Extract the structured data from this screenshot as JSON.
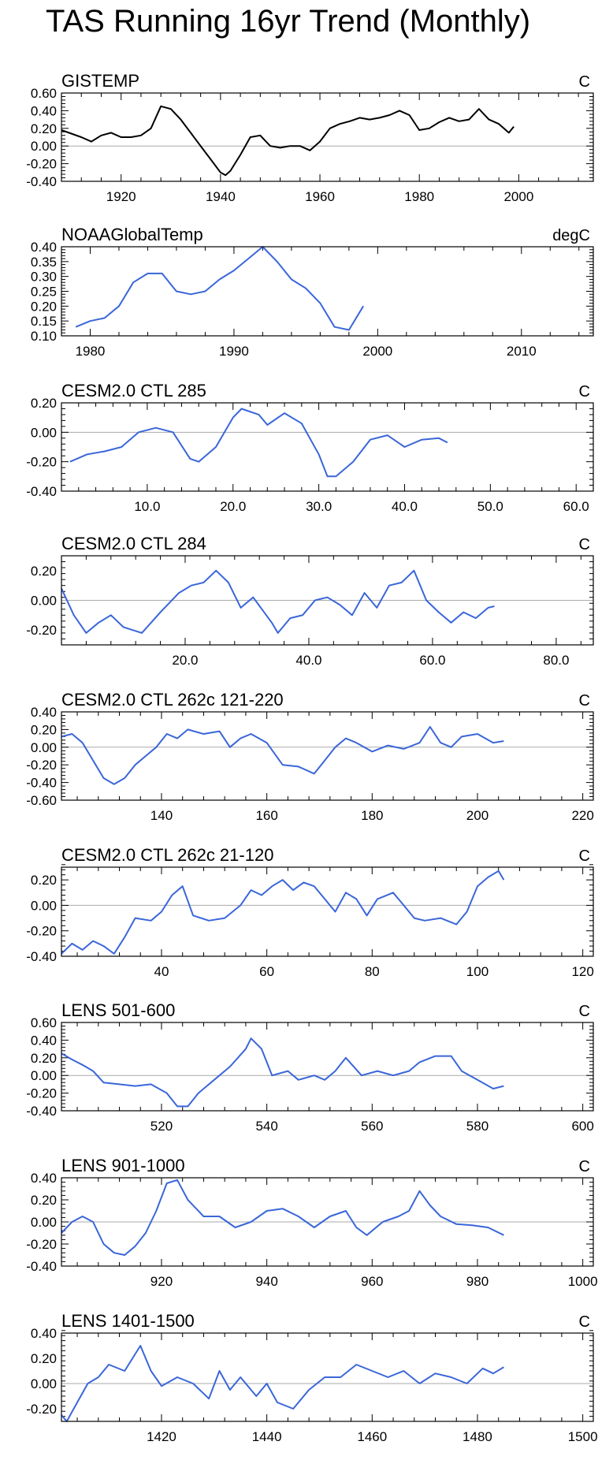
{
  "figure": {
    "title": "TAS Running 16yr Trend (Monthly)"
  },
  "chart_data": [
    {
      "type": "line",
      "title": "GISTEMP",
      "units": "C",
      "line_color": "#000000",
      "xlim": [
        1908,
        2015
      ],
      "ylim": [
        -0.4,
        0.6
      ],
      "xticks": [
        1920,
        1940,
        1960,
        1980,
        2000
      ],
      "xtick_labels": [
        "1920",
        "1940",
        "1960",
        "1980",
        "2000"
      ],
      "yticks": [
        -0.4,
        -0.2,
        0.0,
        0.2,
        0.4,
        0.6
      ],
      "ytick_labels": [
        "-0.40",
        "-0.20",
        "0.00",
        "0.20",
        "0.40",
        "0.60"
      ],
      "x": [
        1908,
        1910,
        1912,
        1914,
        1916,
        1918,
        1920,
        1922,
        1924,
        1926,
        1928,
        1930,
        1932,
        1934,
        1936,
        1938,
        1940,
        1941,
        1942,
        1944,
        1946,
        1948,
        1950,
        1952,
        1954,
        1956,
        1958,
        1960,
        1962,
        1964,
        1966,
        1968,
        1970,
        1972,
        1974,
        1976,
        1978,
        1980,
        1982,
        1984,
        1986,
        1988,
        1990,
        1992,
        1994,
        1996,
        1998,
        1999
      ],
      "y": [
        0.18,
        0.14,
        0.1,
        0.05,
        0.12,
        0.15,
        0.1,
        0.1,
        0.12,
        0.2,
        0.45,
        0.42,
        0.3,
        0.15,
        0.0,
        -0.15,
        -0.3,
        -0.33,
        -0.28,
        -0.1,
        0.1,
        0.12,
        0.0,
        -0.02,
        0.0,
        0.0,
        -0.05,
        0.05,
        0.2,
        0.25,
        0.28,
        0.32,
        0.3,
        0.32,
        0.35,
        0.4,
        0.35,
        0.18,
        0.2,
        0.27,
        0.32,
        0.28,
        0.3,
        0.42,
        0.3,
        0.25,
        0.15,
        0.22
      ]
    },
    {
      "type": "line",
      "title": "NOAAGlobalTemp",
      "units": "degC",
      "line_color": "#3a66d9",
      "xlim": [
        1978,
        2015
      ],
      "ylim": [
        0.1,
        0.4
      ],
      "xticks": [
        1980,
        1990,
        2000,
        2010
      ],
      "xtick_labels": [
        "1980",
        "1990",
        "2000",
        "2010"
      ],
      "yticks": [
        0.1,
        0.15,
        0.2,
        0.25,
        0.3,
        0.35,
        0.4
      ],
      "ytick_labels": [
        "0.10",
        "0.15",
        "0.20",
        "0.25",
        "0.30",
        "0.35",
        "0.40"
      ],
      "x": [
        1979,
        1980,
        1981,
        1982,
        1983,
        1984,
        1985,
        1986,
        1987,
        1988,
        1989,
        1990,
        1991,
        1992,
        1993,
        1994,
        1995,
        1996,
        1997,
        1998,
        1999
      ],
      "y": [
        0.13,
        0.15,
        0.16,
        0.2,
        0.28,
        0.31,
        0.31,
        0.25,
        0.24,
        0.25,
        0.29,
        0.32,
        0.36,
        0.4,
        0.35,
        0.29,
        0.26,
        0.21,
        0.13,
        0.12,
        0.2
      ]
    },
    {
      "type": "line",
      "title": "CESM2.0 CTL 285",
      "units": "C",
      "line_color": "#3a66d9",
      "xlim": [
        0,
        62
      ],
      "ylim": [
        -0.4,
        0.2
      ],
      "xticks": [
        10,
        20,
        30,
        40,
        50,
        60
      ],
      "xtick_labels": [
        "10.0",
        "20.0",
        "30.0",
        "40.0",
        "50.0",
        "60.0"
      ],
      "yticks": [
        -0.4,
        -0.2,
        0.0,
        0.2
      ],
      "ytick_labels": [
        "-0.40",
        "-0.20",
        "0.00",
        "0.20"
      ],
      "x": [
        1,
        3,
        5,
        7,
        9,
        11,
        13,
        15,
        16,
        18,
        20,
        21,
        23,
        24,
        26,
        28,
        30,
        31,
        32,
        34,
        36,
        38,
        40,
        42,
        44,
        45
      ],
      "y": [
        -0.2,
        -0.15,
        -0.13,
        -0.1,
        0.0,
        0.03,
        0.0,
        -0.18,
        -0.2,
        -0.1,
        0.1,
        0.16,
        0.12,
        0.05,
        0.13,
        0.06,
        -0.15,
        -0.3,
        -0.3,
        -0.2,
        -0.05,
        -0.02,
        -0.1,
        -0.05,
        -0.04,
        -0.07
      ]
    },
    {
      "type": "line",
      "title": "CESM2.0 CTL 284",
      "units": "C",
      "line_color": "#3a66d9",
      "xlim": [
        0,
        86
      ],
      "ylim": [
        -0.3,
        0.3
      ],
      "xticks": [
        20,
        40,
        60,
        80
      ],
      "xtick_labels": [
        "20.0",
        "40.0",
        "60.0",
        "80.0"
      ],
      "yticks": [
        -0.2,
        0.0,
        0.2
      ],
      "ytick_labels": [
        "-0.20",
        "0.00",
        "0.20"
      ],
      "x": [
        0,
        2,
        4,
        6,
        8,
        10,
        13,
        16,
        19,
        21,
        23,
        25,
        27,
        29,
        31,
        34,
        35,
        37,
        39,
        41,
        43,
        45,
        47,
        49,
        51,
        53,
        55,
        57,
        59,
        61,
        63,
        65,
        67,
        69,
        70
      ],
      "y": [
        0.08,
        -0.1,
        -0.22,
        -0.15,
        -0.1,
        -0.18,
        -0.22,
        -0.08,
        0.05,
        0.1,
        0.12,
        0.2,
        0.12,
        -0.05,
        0.02,
        -0.15,
        -0.22,
        -0.12,
        -0.1,
        0.0,
        0.02,
        -0.03,
        -0.1,
        0.05,
        -0.05,
        0.1,
        0.12,
        0.2,
        0.0,
        -0.08,
        -0.15,
        -0.08,
        -0.12,
        -0.05,
        -0.04
      ]
    },
    {
      "type": "line",
      "title": "CESM2.0 CTL 262c 121-220",
      "units": "C",
      "line_color": "#3a66d9",
      "xlim": [
        121,
        222
      ],
      "ylim": [
        -0.6,
        0.4
      ],
      "xticks": [
        140,
        160,
        180,
        200,
        220
      ],
      "xtick_labels": [
        "140",
        "160",
        "180",
        "200",
        "220"
      ],
      "yticks": [
        -0.6,
        -0.4,
        -0.2,
        0.0,
        0.2,
        0.4
      ],
      "ytick_labels": [
        "-0.60",
        "-0.40",
        "-0.20",
        "0.00",
        "0.20",
        "0.40"
      ],
      "x": [
        121,
        123,
        125,
        127,
        129,
        131,
        133,
        135,
        137,
        139,
        141,
        143,
        145,
        148,
        151,
        153,
        155,
        157,
        160,
        163,
        166,
        169,
        171,
        173,
        175,
        177,
        180,
        183,
        186,
        189,
        191,
        193,
        195,
        197,
        200,
        203,
        205
      ],
      "y": [
        0.12,
        0.15,
        0.05,
        -0.15,
        -0.35,
        -0.42,
        -0.35,
        -0.2,
        -0.1,
        0.0,
        0.15,
        0.1,
        0.2,
        0.15,
        0.18,
        0.0,
        0.1,
        0.15,
        0.05,
        -0.2,
        -0.22,
        -0.3,
        -0.15,
        0.0,
        0.1,
        0.05,
        -0.05,
        0.02,
        -0.02,
        0.05,
        0.23,
        0.05,
        0.0,
        0.12,
        0.15,
        0.05,
        0.07
      ]
    },
    {
      "type": "line",
      "title": "CESM2.0 CTL 262c 21-120",
      "units": "C",
      "line_color": "#3a66d9",
      "xlim": [
        21,
        122
      ],
      "ylim": [
        -0.4,
        0.3
      ],
      "xticks": [
        40,
        60,
        80,
        100,
        120
      ],
      "xtick_labels": [
        "40",
        "60",
        "80",
        "100",
        "120"
      ],
      "yticks": [
        -0.4,
        -0.2,
        0.0,
        0.2
      ],
      "ytick_labels": [
        "-0.40",
        "-0.20",
        "0.00",
        "0.20"
      ],
      "x": [
        21,
        23,
        25,
        27,
        29,
        31,
        33,
        35,
        38,
        40,
        42,
        44,
        46,
        49,
        52,
        55,
        57,
        59,
        61,
        63,
        65,
        67,
        69,
        71,
        73,
        75,
        77,
        79,
        81,
        84,
        86,
        88,
        90,
        93,
        96,
        98,
        100,
        102,
        104,
        105
      ],
      "y": [
        -0.38,
        -0.3,
        -0.35,
        -0.28,
        -0.32,
        -0.38,
        -0.25,
        -0.1,
        -0.12,
        -0.05,
        0.08,
        0.15,
        -0.08,
        -0.12,
        -0.1,
        0.0,
        0.12,
        0.08,
        0.15,
        0.2,
        0.12,
        0.18,
        0.15,
        0.05,
        -0.05,
        0.1,
        0.05,
        -0.08,
        0.05,
        0.1,
        0.0,
        -0.1,
        -0.12,
        -0.1,
        -0.15,
        -0.05,
        0.15,
        0.22,
        0.27,
        0.2
      ]
    },
    {
      "type": "line",
      "title": "LENS 501-600",
      "units": "C",
      "line_color": "#3a66d9",
      "xlim": [
        501,
        602
      ],
      "ylim": [
        -0.4,
        0.6
      ],
      "xticks": [
        520,
        540,
        560,
        580,
        600
      ],
      "xtick_labels": [
        "520",
        "540",
        "560",
        "580",
        "600"
      ],
      "yticks": [
        -0.4,
        -0.2,
        0.0,
        0.2,
        0.4,
        0.6
      ],
      "ytick_labels": [
        "-0.40",
        "-0.20",
        "0.00",
        "0.20",
        "0.40",
        "0.60"
      ],
      "x": [
        501,
        503,
        505,
        507,
        509,
        512,
        515,
        518,
        521,
        523,
        525,
        527,
        530,
        533,
        536,
        537,
        539,
        541,
        544,
        546,
        549,
        551,
        553,
        555,
        558,
        561,
        564,
        567,
        569,
        572,
        575,
        577,
        580,
        583,
        585
      ],
      "y": [
        0.25,
        0.18,
        0.12,
        0.05,
        -0.08,
        -0.1,
        -0.12,
        -0.1,
        -0.2,
        -0.35,
        -0.35,
        -0.2,
        -0.05,
        0.1,
        0.3,
        0.42,
        0.3,
        0.0,
        0.05,
        -0.05,
        0.0,
        -0.05,
        0.05,
        0.2,
        0.0,
        0.05,
        0.0,
        0.05,
        0.15,
        0.22,
        0.22,
        0.05,
        -0.05,
        -0.15,
        -0.12
      ]
    },
    {
      "type": "line",
      "title": "LENS 901-1000",
      "units": "C",
      "line_color": "#3a66d9",
      "xlim": [
        901,
        1002
      ],
      "ylim": [
        -0.4,
        0.4
      ],
      "xticks": [
        920,
        940,
        960,
        980,
        1000
      ],
      "xtick_labels": [
        "920",
        "940",
        "960",
        "980",
        "1000"
      ],
      "yticks": [
        -0.4,
        -0.2,
        0.0,
        0.2,
        0.4
      ],
      "ytick_labels": [
        "-0.40",
        "-0.20",
        "0.00",
        "0.20",
        "0.40"
      ],
      "x": [
        901,
        903,
        905,
        907,
        909,
        911,
        913,
        915,
        917,
        919,
        921,
        923,
        925,
        928,
        931,
        934,
        937,
        940,
        943,
        946,
        949,
        952,
        955,
        957,
        959,
        962,
        965,
        967,
        969,
        971,
        973,
        976,
        979,
        982,
        985
      ],
      "y": [
        -0.1,
        0.0,
        0.05,
        0.0,
        -0.2,
        -0.28,
        -0.3,
        -0.22,
        -0.1,
        0.1,
        0.35,
        0.38,
        0.2,
        0.05,
        0.05,
        -0.05,
        0.0,
        0.1,
        0.12,
        0.05,
        -0.05,
        0.05,
        0.1,
        -0.05,
        -0.12,
        0.0,
        0.05,
        0.1,
        0.28,
        0.15,
        0.05,
        -0.02,
        -0.03,
        -0.05,
        -0.12
      ]
    },
    {
      "type": "line",
      "title": "LENS 1401-1500",
      "units": "C",
      "line_color": "#3a66d9",
      "xlim": [
        1401,
        1502
      ],
      "ylim": [
        -0.3,
        0.4
      ],
      "xticks": [
        1420,
        1440,
        1460,
        1480,
        1500
      ],
      "xtick_labels": [
        "1420",
        "1440",
        "1460",
        "1480",
        "1500"
      ],
      "yticks": [
        -0.2,
        0.0,
        0.2,
        0.4
      ],
      "ytick_labels": [
        "-0.20",
        "0.00",
        "0.20",
        "0.40"
      ],
      "x": [
        1401,
        1402,
        1404,
        1406,
        1408,
        1410,
        1413,
        1416,
        1418,
        1420,
        1423,
        1426,
        1429,
        1431,
        1433,
        1435,
        1438,
        1440,
        1442,
        1445,
        1448,
        1451,
        1454,
        1457,
        1460,
        1463,
        1466,
        1469,
        1472,
        1475,
        1478,
        1481,
        1483,
        1485
      ],
      "y": [
        -0.25,
        -0.3,
        -0.15,
        0.0,
        0.05,
        0.15,
        0.1,
        0.3,
        0.1,
        -0.02,
        0.05,
        0.0,
        -0.12,
        0.1,
        -0.05,
        0.05,
        -0.1,
        0.0,
        -0.15,
        -0.2,
        -0.05,
        0.05,
        0.05,
        0.15,
        0.1,
        0.05,
        0.1,
        0.0,
        0.08,
        0.05,
        0.0,
        0.12,
        0.08,
        0.13
      ]
    }
  ]
}
